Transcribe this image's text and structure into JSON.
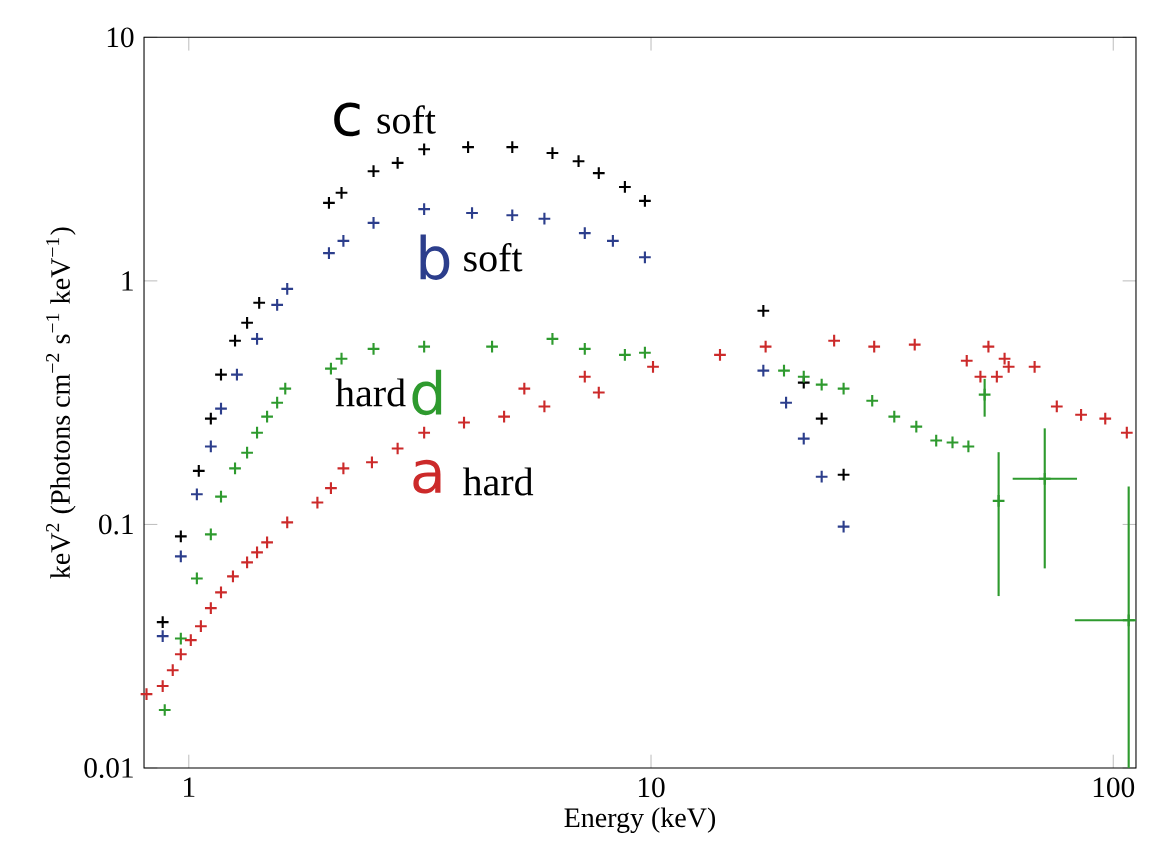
{
  "chart_data": {
    "type": "scatter",
    "xlabel": "Energy (keV)",
    "ylabel": "keV$^{2}$ (Photons cm$^{−2}$ s$^{−1}$ keV$^{−1}$)",
    "log": "xy",
    "xlim": [
      0.8,
      112
    ],
    "ylim": [
      0.01,
      10
    ],
    "xticks": [
      1,
      10,
      100
    ],
    "yticks": [
      0.01,
      0.1,
      1,
      10
    ],
    "marker": "cross",
    "annotations": [
      "soft",
      "soft",
      "hard",
      "hard"
    ],
    "series": [
      {
        "name": "c",
        "color": "#000000",
        "x": [
          0.878,
          0.961,
          1.051,
          1.116,
          1.174,
          1.259,
          1.337,
          1.42,
          2.01,
          2.14,
          2.51,
          2.83,
          3.23,
          4.02,
          5.01,
          6.12,
          6.97,
          7.71,
          8.78,
          9.7,
          17.5,
          21.4,
          23.4,
          26.1
        ],
        "values": [
          0.0397,
          0.0893,
          0.166,
          0.272,
          0.412,
          0.568,
          0.673,
          0.813,
          2.09,
          2.3,
          2.82,
          3.05,
          3.47,
          3.54,
          3.54,
          3.35,
          3.1,
          2.77,
          2.43,
          2.13,
          0.754,
          0.382,
          0.272,
          0.16
        ]
      },
      {
        "name": "b",
        "color": "#2c3e8c",
        "x": [
          0.878,
          0.961,
          1.041,
          1.116,
          1.174,
          1.271,
          1.405,
          1.553,
          1.633,
          2.01,
          2.16,
          2.51,
          3.23,
          4.1,
          5.01,
          5.88,
          7.19,
          8.27,
          9.7,
          17.5,
          19.6,
          21.4,
          23.4,
          26.1
        ],
        "values": [
          0.0348,
          0.0739,
          0.133,
          0.209,
          0.299,
          0.412,
          0.578,
          0.797,
          0.927,
          1.3,
          1.46,
          1.73,
          1.97,
          1.9,
          1.86,
          1.8,
          1.57,
          1.46,
          1.25,
          0.428,
          0.316,
          0.225,
          0.157,
          0.098
        ]
      },
      {
        "name": "d",
        "color": "#2e9a2e",
        "x": [
          0.887,
          0.961,
          1.041,
          1.116,
          1.174,
          1.259,
          1.337,
          1.405,
          1.477,
          1.553,
          1.617,
          2.03,
          2.14,
          2.51,
          3.23,
          4.53,
          6.12,
          7.19,
          8.78,
          9.7,
          19.4,
          21.4,
          23.4,
          26.1,
          30.1,
          33.6,
          37.5,
          41.4,
          44.9,
          48.6,
          52.7,
          56.5,
          71.1,
          108
        ],
        "values": [
          0.0173,
          0.034,
          0.06,
          0.091,
          0.13,
          0.17,
          0.197,
          0.238,
          0.277,
          0.316,
          0.361,
          0.436,
          0.479,
          0.526,
          0.537,
          0.537,
          0.578,
          0.526,
          0.497,
          0.507,
          0.428,
          0.404,
          0.375,
          0.361,
          0.322,
          0.277,
          0.252,
          0.221,
          0.217,
          0.209,
          0.341,
          0.125,
          0.154,
          0.0404
        ],
        "errors": [
          null,
          null,
          null,
          null,
          null,
          null,
          null,
          null,
          null,
          null,
          null,
          null,
          null,
          null,
          null,
          null,
          null,
          null,
          null,
          null,
          null,
          null,
          null,
          null,
          null,
          null,
          null,
          null,
          null,
          null,
          [
            0.277,
            0.396
          ],
          [
            0.0508,
            0.198
          ],
          [
            0.066,
            0.248
          ],
          [
            0.01,
            0.143
          ]
        ],
        "xerrors": [
          null,
          null,
          null,
          null,
          null,
          null,
          null,
          null,
          null,
          null,
          null,
          null,
          null,
          null,
          null,
          null,
          null,
          null,
          null,
          null,
          null,
          null,
          null,
          null,
          null,
          null,
          null,
          null,
          null,
          null,
          null,
          null,
          [
            60.6,
            83.5
          ],
          [
            82.6,
            112
          ]
        ]
      },
      {
        "name": "a",
        "color": "#cc2a2a",
        "x": [
          0.81,
          0.878,
          0.923,
          0.961,
          1.01,
          1.062,
          1.116,
          1.174,
          1.246,
          1.337,
          1.405,
          1.477,
          1.633,
          1.898,
          2.03,
          2.16,
          2.49,
          2.83,
          3.23,
          3.94,
          4.81,
          5.88,
          7.71,
          5.32,
          7.19,
          10.1,
          14.1,
          17.7,
          24.9,
          30.4,
          37.2,
          48.2,
          51.6,
          53.7,
          56.0,
          58.2,
          59.4,
          67.6,
          75.5,
          85.2,
          96.1,
          107
        ],
        "values": [
          0.0201,
          0.0217,
          0.0252,
          0.0293,
          0.0335,
          0.0382,
          0.0453,
          0.0526,
          0.0612,
          0.0699,
          0.0768,
          0.0844,
          0.102,
          0.123,
          0.141,
          0.17,
          0.18,
          0.205,
          0.238,
          0.262,
          0.277,
          0.305,
          0.348,
          0.361,
          0.404,
          0.444,
          0.497,
          0.537,
          0.568,
          0.537,
          0.547,
          0.47,
          0.404,
          0.537,
          0.404,
          0.479,
          0.444,
          0.444,
          0.305,
          0.282,
          0.272,
          0.238
        ]
      }
    ]
  }
}
